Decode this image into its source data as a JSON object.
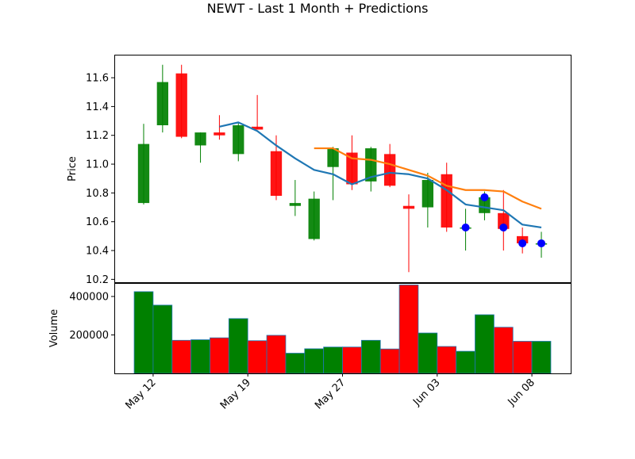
{
  "chart_data": {
    "type": "candlestick",
    "title": "NEWT - Last 1 Month + Predictions",
    "price_panel": {
      "ylabel": "Price",
      "ylim": [
        10.18,
        11.76
      ],
      "yticks": [
        10.2,
        10.4,
        10.6,
        10.8,
        11.0,
        11.2,
        11.4,
        11.6
      ],
      "ytick_labels": [
        "10.2",
        "10.4",
        "10.6",
        "10.8",
        "11.0",
        "11.2",
        "11.4",
        "11.6"
      ]
    },
    "volume_panel": {
      "ylabel": "Volume",
      "ylim": [
        0,
        470000
      ],
      "yticks": [
        200000,
        400000
      ],
      "ytick_labels": [
        "200000",
        "400000"
      ]
    },
    "xlim": [
      -1.55,
      22.55
    ],
    "xticks": [
      {
        "pos": 0.5,
        "label": "May 12"
      },
      {
        "pos": 5.5,
        "label": "May 19"
      },
      {
        "pos": 10.5,
        "label": "May 27"
      },
      {
        "pos": 15.5,
        "label": "Jun 03"
      },
      {
        "pos": 20.5,
        "label": "Jun 08"
      }
    ],
    "candles": [
      {
        "open": 10.73,
        "high": 11.28,
        "low": 10.72,
        "close": 11.14,
        "volume": 425000
      },
      {
        "open": 11.27,
        "high": 11.69,
        "low": 11.22,
        "close": 11.57,
        "volume": 355000
      },
      {
        "open": 11.63,
        "high": 11.69,
        "low": 11.18,
        "close": 11.19,
        "volume": 172000
      },
      {
        "open": 11.13,
        "high": 11.22,
        "low": 11.01,
        "close": 11.22,
        "volume": 175000
      },
      {
        "open": 11.22,
        "high": 11.34,
        "low": 11.17,
        "close": 11.2,
        "volume": 185000
      },
      {
        "open": 11.07,
        "high": 11.29,
        "low": 11.02,
        "close": 11.27,
        "volume": 285000
      },
      {
        "open": 11.26,
        "high": 11.48,
        "low": 11.24,
        "close": 11.24,
        "volume": 170000
      },
      {
        "open": 11.09,
        "high": 11.2,
        "low": 10.75,
        "close": 10.78,
        "volume": 198000
      },
      {
        "open": 10.71,
        "high": 10.89,
        "low": 10.64,
        "close": 10.73,
        "volume": 105000
      },
      {
        "open": 10.48,
        "high": 10.81,
        "low": 10.47,
        "close": 10.76,
        "volume": 128000
      },
      {
        "open": 10.98,
        "high": 11.12,
        "low": 10.75,
        "close": 11.11,
        "volume": 137000
      },
      {
        "open": 11.08,
        "high": 11.2,
        "low": 10.82,
        "close": 10.86,
        "volume": 137000
      },
      {
        "open": 10.88,
        "high": 11.12,
        "low": 10.81,
        "close": 11.11,
        "volume": 172000
      },
      {
        "open": 11.07,
        "high": 11.14,
        "low": 10.84,
        "close": 10.85,
        "volume": 127000
      },
      {
        "open": 10.71,
        "high": 10.79,
        "low": 10.25,
        "close": 10.69,
        "volume": 460000
      },
      {
        "open": 10.7,
        "high": 10.94,
        "low": 10.56,
        "close": 10.89,
        "volume": 210000
      },
      {
        "open": 10.93,
        "high": 11.01,
        "low": 10.53,
        "close": 10.56,
        "volume": 140000
      },
      {
        "open": 10.56,
        "high": 10.69,
        "low": 10.4,
        "close": 10.56,
        "volume": 115000
      },
      {
        "open": 10.66,
        "high": 10.81,
        "low": 10.61,
        "close": 10.77,
        "volume": 305000
      },
      {
        "open": 10.66,
        "high": 10.82,
        "low": 10.4,
        "close": 10.55,
        "volume": 240000
      },
      {
        "open": 10.5,
        "high": 10.56,
        "low": 10.38,
        "close": 10.45,
        "volume": 167000
      },
      {
        "open": 10.45,
        "high": 10.53,
        "low": 10.35,
        "close": 10.45,
        "volume": 167000
      }
    ],
    "series": [
      {
        "color": "#1f77b4",
        "x": [
          4,
          5,
          6,
          7,
          8,
          9,
          10,
          11,
          12,
          13,
          14,
          15,
          16,
          17,
          18,
          19,
          20,
          21
        ],
        "values": [
          11.26,
          11.29,
          11.23,
          11.13,
          11.04,
          10.96,
          10.93,
          10.86,
          10.91,
          10.94,
          10.93,
          10.9,
          10.82,
          10.72,
          10.7,
          10.68,
          10.58,
          10.56
        ]
      },
      {
        "color": "#ff7f0e",
        "x": [
          9,
          10,
          11,
          12,
          13,
          14,
          15,
          16,
          17,
          18,
          19,
          20,
          21
        ],
        "values": [
          11.11,
          11.11,
          11.04,
          11.03,
          11.0,
          10.96,
          10.92,
          10.85,
          10.82,
          10.82,
          10.81,
          10.74,
          10.69
        ]
      }
    ],
    "markers": [
      {
        "x": 17,
        "y": 10.56
      },
      {
        "x": 18,
        "y": 10.77
      },
      {
        "x": 19,
        "y": 10.56
      },
      {
        "x": 20,
        "y": 10.45
      },
      {
        "x": 21,
        "y": 10.45
      }
    ],
    "colors": {
      "up": "#008000",
      "down": "#ff0000",
      "marker": "#0000ff",
      "volume_edge": "#1f77b4"
    }
  }
}
